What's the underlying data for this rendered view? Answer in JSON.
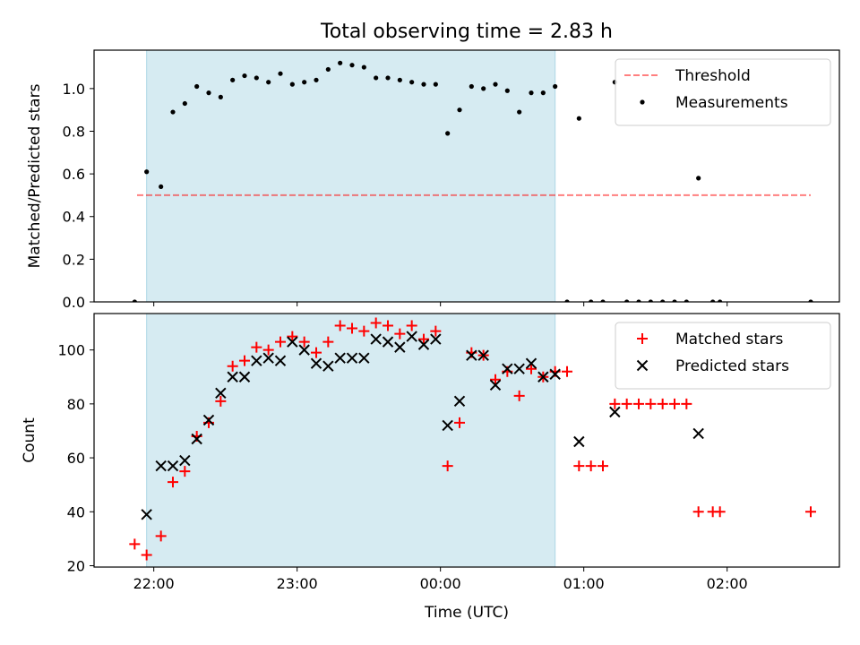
{
  "title": "Total observing time = 2.83 h",
  "colors": {
    "observing_span": "#add8e6",
    "threshold": "#ff0000",
    "measurements": "#000000",
    "matched": "#ff0000",
    "predicted": "#000000"
  },
  "chart_data": [
    {
      "type": "scatter",
      "panel": "top",
      "xlabel": "",
      "ylabel": "Matched/Predicted stars",
      "xlim": [
        "21:35",
        "02:47"
      ],
      "ylim": [
        0,
        1.18
      ],
      "x_ticks": [
        "22:00",
        "23:00",
        "00:00",
        "01:00",
        "02:00"
      ],
      "y_ticks": [
        "0.0",
        "0.2",
        "0.4",
        "0.6",
        "0.8",
        "1.0"
      ],
      "y_tick_values": [
        0,
        0.2,
        0.4,
        0.6,
        0.8,
        1.0
      ],
      "observing_span": [
        "21:57",
        "00:48"
      ],
      "legend_position": "top-right",
      "threshold": {
        "name": "Threshold",
        "x": [
          "21:53",
          "02:35"
        ],
        "y": 0.5
      },
      "series": [
        {
          "name": "Measurements",
          "points": [
            [
              "21:52",
              0.0
            ],
            [
              "21:57",
              0.61
            ],
            [
              "22:03",
              0.54
            ],
            [
              "22:08",
              0.89
            ],
            [
              "22:13",
              0.93
            ],
            [
              "22:18",
              1.01
            ],
            [
              "22:23",
              0.98
            ],
            [
              "22:28",
              0.96
            ],
            [
              "22:33",
              1.04
            ],
            [
              "22:38",
              1.06
            ],
            [
              "22:43",
              1.05
            ],
            [
              "22:48",
              1.03
            ],
            [
              "22:53",
              1.07
            ],
            [
              "22:58",
              1.02
            ],
            [
              "23:03",
              1.03
            ],
            [
              "23:08",
              1.04
            ],
            [
              "23:13",
              1.09
            ],
            [
              "23:18",
              1.12
            ],
            [
              "23:23",
              1.11
            ],
            [
              "23:28",
              1.1
            ],
            [
              "23:33",
              1.05
            ],
            [
              "23:38",
              1.05
            ],
            [
              "23:43",
              1.04
            ],
            [
              "23:48",
              1.03
            ],
            [
              "23:53",
              1.02
            ],
            [
              "23:58",
              1.02
            ],
            [
              "00:03",
              0.79
            ],
            [
              "00:08",
              0.9
            ],
            [
              "00:13",
              1.01
            ],
            [
              "00:18",
              1.0
            ],
            [
              "00:23",
              1.02
            ],
            [
              "00:28",
              0.99
            ],
            [
              "00:33",
              0.89
            ],
            [
              "00:38",
              0.98
            ],
            [
              "00:43",
              0.98
            ],
            [
              "00:48",
              1.01
            ],
            [
              "00:53",
              0.0
            ],
            [
              "00:58",
              0.86
            ],
            [
              "01:03",
              0.0
            ],
            [
              "01:08",
              0.0
            ],
            [
              "01:13",
              1.03
            ],
            [
              "01:18",
              0.0
            ],
            [
              "01:23",
              0.0
            ],
            [
              "01:28",
              0.0
            ],
            [
              "01:33",
              0.0
            ],
            [
              "01:38",
              0.0
            ],
            [
              "01:43",
              0.0
            ],
            [
              "01:48",
              0.58
            ],
            [
              "01:54",
              0.0
            ],
            [
              "01:57",
              0.0
            ],
            [
              "02:35",
              0.0
            ]
          ]
        }
      ]
    },
    {
      "type": "scatter",
      "panel": "bottom",
      "xlabel": "Time (UTC)",
      "ylabel": "Count",
      "xlim": [
        "21:35",
        "02:47"
      ],
      "ylim": [
        19.5,
        113.5
      ],
      "x_ticks": [
        "22:00",
        "23:00",
        "00:00",
        "01:00",
        "02:00"
      ],
      "y_ticks": [
        "20",
        "40",
        "60",
        "80",
        "100"
      ],
      "y_tick_values": [
        20,
        40,
        60,
        80,
        100
      ],
      "observing_span": [
        "21:57",
        "00:48"
      ],
      "legend_position": "top-right",
      "series": [
        {
          "name": "Matched stars",
          "marker": "plus",
          "points": [
            [
              "21:52",
              28
            ],
            [
              "21:57",
              24
            ],
            [
              "22:03",
              31
            ],
            [
              "22:08",
              51
            ],
            [
              "22:13",
              55
            ],
            [
              "22:18",
              68
            ],
            [
              "22:23",
              73
            ],
            [
              "22:28",
              81
            ],
            [
              "22:33",
              94
            ],
            [
              "22:38",
              96
            ],
            [
              "22:43",
              101
            ],
            [
              "22:48",
              100
            ],
            [
              "22:53",
              103
            ],
            [
              "22:58",
              105
            ],
            [
              "23:03",
              103
            ],
            [
              "23:08",
              99
            ],
            [
              "23:13",
              103
            ],
            [
              "23:18",
              109
            ],
            [
              "23:23",
              108
            ],
            [
              "23:28",
              107
            ],
            [
              "23:33",
              110
            ],
            [
              "23:38",
              109
            ],
            [
              "23:43",
              106
            ],
            [
              "23:48",
              109
            ],
            [
              "23:53",
              104
            ],
            [
              "23:58",
              107
            ],
            [
              "00:03",
              57
            ],
            [
              "00:08",
              73
            ],
            [
              "00:13",
              99
            ],
            [
              "00:18",
              98
            ],
            [
              "00:23",
              89
            ],
            [
              "00:28",
              92
            ],
            [
              "00:33",
              83
            ],
            [
              "00:38",
              93
            ],
            [
              "00:43",
              90
            ],
            [
              "00:48",
              92
            ],
            [
              "00:53",
              92
            ],
            [
              "00:58",
              57
            ],
            [
              "01:03",
              57
            ],
            [
              "01:08",
              57
            ],
            [
              "01:13",
              80
            ],
            [
              "01:18",
              80
            ],
            [
              "01:23",
              80
            ],
            [
              "01:28",
              80
            ],
            [
              "01:33",
              80
            ],
            [
              "01:38",
              80
            ],
            [
              "01:43",
              80
            ],
            [
              "01:48",
              40
            ],
            [
              "01:54",
              40
            ],
            [
              "01:57",
              40
            ],
            [
              "02:35",
              40
            ]
          ]
        },
        {
          "name": "Predicted stars",
          "marker": "x",
          "points": [
            [
              "21:57",
              39
            ],
            [
              "22:03",
              57
            ],
            [
              "22:08",
              57
            ],
            [
              "22:13",
              59
            ],
            [
              "22:18",
              67
            ],
            [
              "22:23",
              74
            ],
            [
              "22:28",
              84
            ],
            [
              "22:33",
              90
            ],
            [
              "22:38",
              90
            ],
            [
              "22:43",
              96
            ],
            [
              "22:48",
              97
            ],
            [
              "22:53",
              96
            ],
            [
              "22:58",
              103
            ],
            [
              "23:03",
              100
            ],
            [
              "23:08",
              95
            ],
            [
              "23:13",
              94
            ],
            [
              "23:18",
              97
            ],
            [
              "23:23",
              97
            ],
            [
              "23:28",
              97
            ],
            [
              "23:33",
              104
            ],
            [
              "23:38",
              103
            ],
            [
              "23:43",
              101
            ],
            [
              "23:48",
              105
            ],
            [
              "23:53",
              102
            ],
            [
              "23:58",
              104
            ],
            [
              "00:03",
              72
            ],
            [
              "00:08",
              81
            ],
            [
              "00:13",
              98
            ],
            [
              "00:18",
              98
            ],
            [
              "00:23",
              87
            ],
            [
              "00:28",
              93
            ],
            [
              "00:33",
              93
            ],
            [
              "00:38",
              95
            ],
            [
              "00:43",
              90
            ],
            [
              "00:48",
              91
            ],
            [
              "00:58",
              66
            ],
            [
              "01:13",
              77
            ],
            [
              "01:48",
              69
            ]
          ]
        }
      ]
    }
  ]
}
